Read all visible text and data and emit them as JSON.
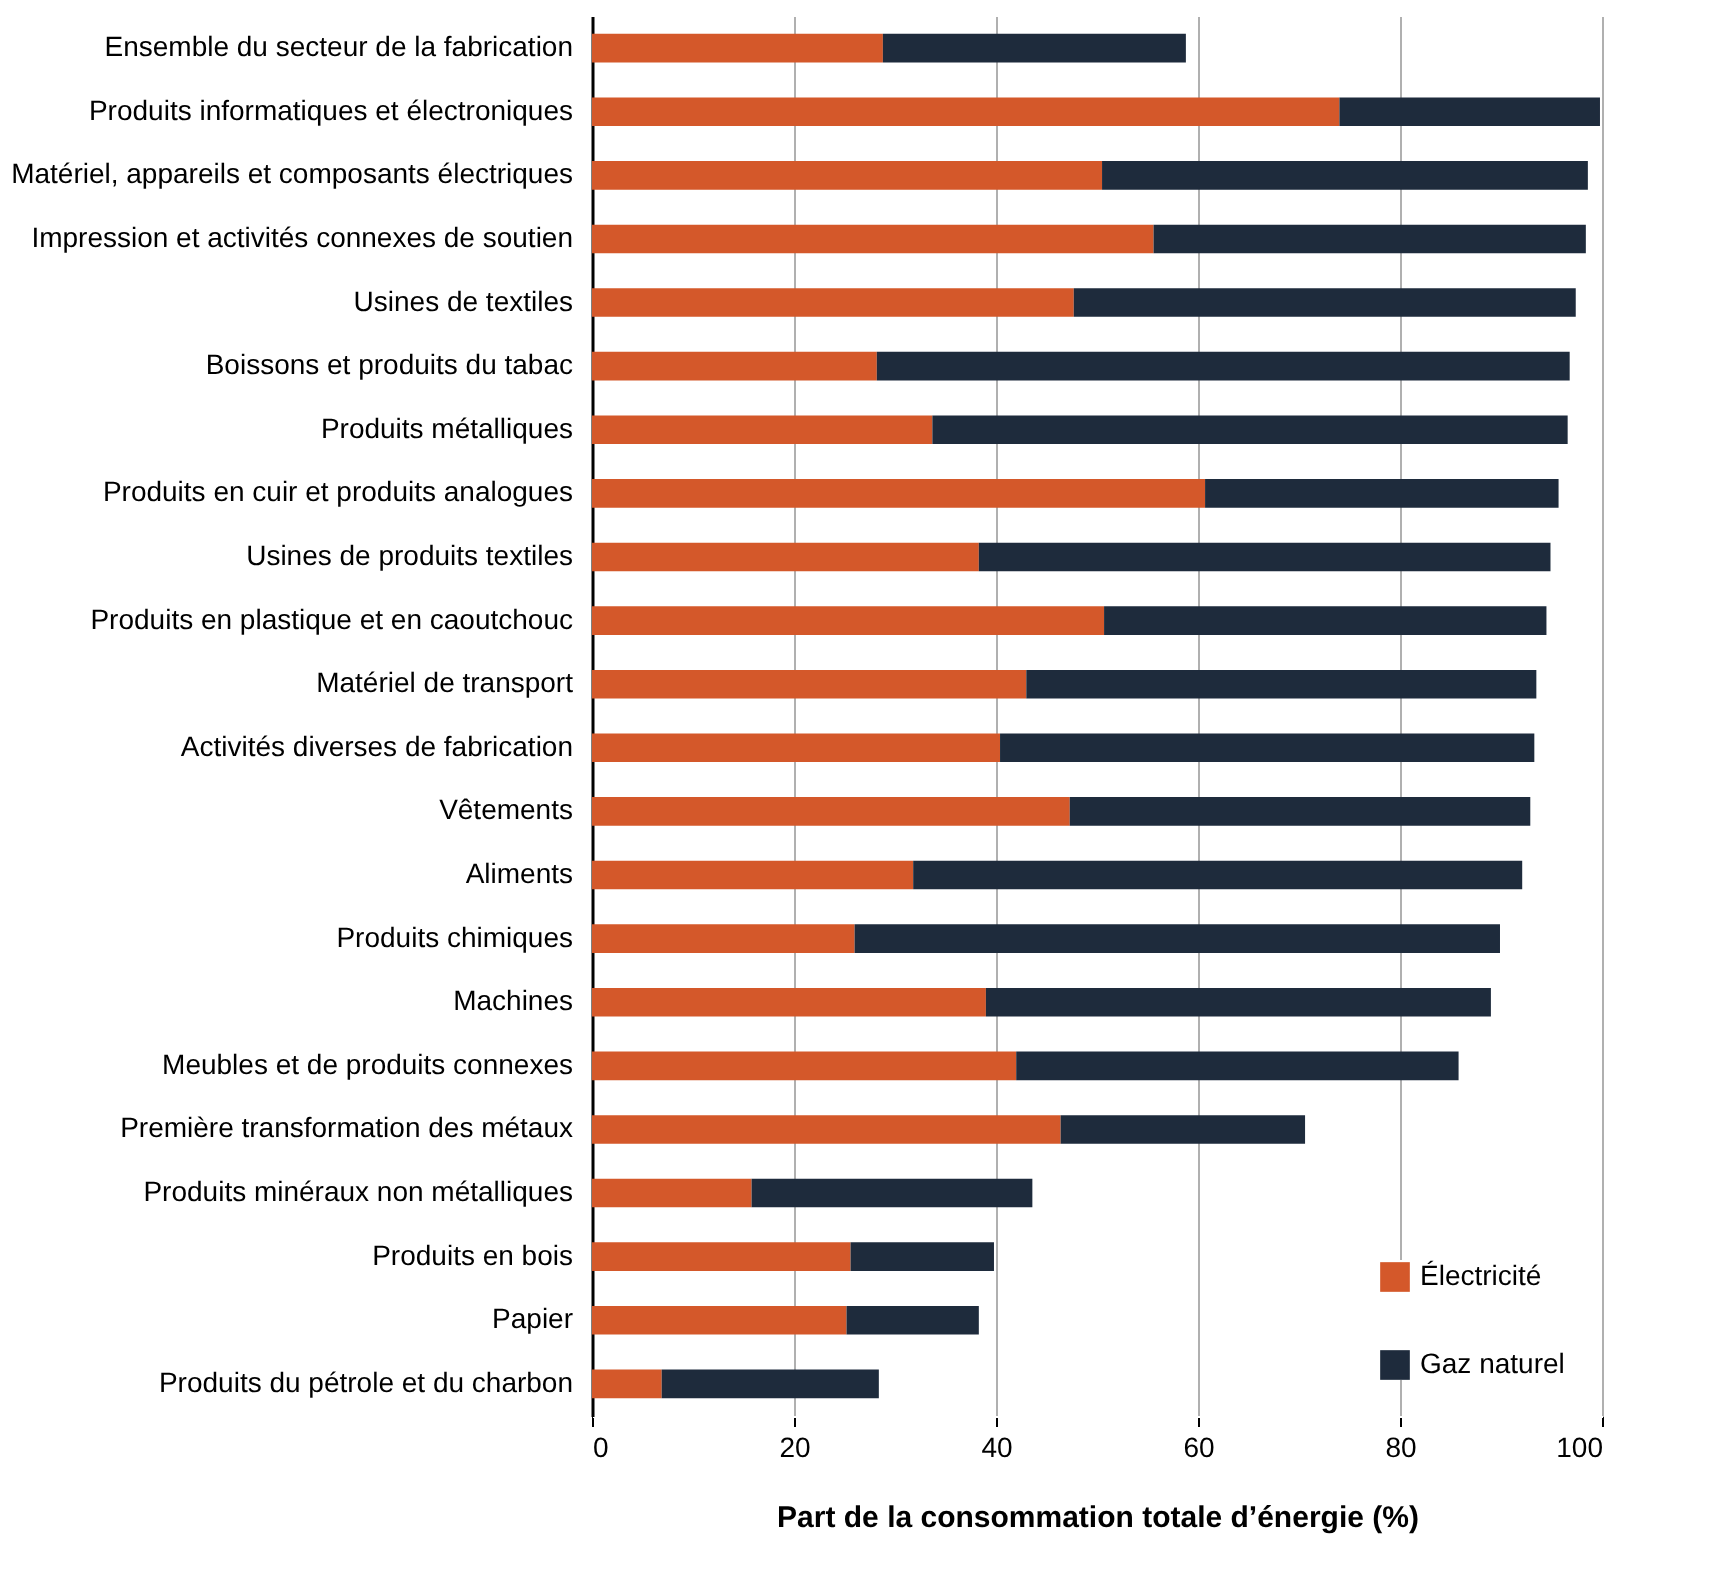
{
  "chart_data": {
    "type": "bar",
    "orientation": "horizontal",
    "stacked": true,
    "xlabel": "Part de la consommation totale d’énergie (%)",
    "categories": [
      "Ensemble du secteur de la fabrication",
      "Produits informatiques et électroniques",
      "Matériel, appareils et composants électriques",
      "Impression et activités connexes de soutien",
      "Usines de textiles",
      "Boissons et produits du tabac",
      "Produits métalliques",
      "Produits en cuir et produits analogues",
      "Usines de produits textiles",
      "Produits en plastique et en caoutchouc",
      "Matériel de transport",
      "Activités diverses de fabrication",
      "Vêtements",
      "Aliments",
      "Produits chimiques",
      "Machines",
      "Meubles et de produits connexes",
      "Première transformation des métaux",
      "Produits minéraux non métalliques",
      "Produits en bois",
      "Papier",
      "Produits du pétrole et du charbon"
    ],
    "series": [
      {
        "name": "Électricité",
        "color": "#d4582a",
        "values": [
          28.8,
          74,
          50.5,
          55.6,
          47.7,
          28.2,
          33.7,
          60.7,
          38.3,
          50.7,
          43,
          40.4,
          47.3,
          31.8,
          26,
          39,
          42,
          46.4,
          15.8,
          25.6,
          25.2,
          6.9
        ]
      },
      {
        "name": "Gaz naturel",
        "color": "#1e2b3c",
        "values": [
          30,
          25.8,
          48.1,
          42.8,
          49.7,
          68.6,
          62.9,
          35,
          56.6,
          43.8,
          50.5,
          52.9,
          45.6,
          60.3,
          63.9,
          50,
          43.8,
          24.2,
          27.8,
          14.2,
          13.1,
          21.5
        ]
      }
    ],
    "xlim": [
      0,
      100
    ],
    "xticks": [
      0,
      20,
      40,
      60,
      80,
      100
    ],
    "grid": "x",
    "legend": "bottom right"
  }
}
